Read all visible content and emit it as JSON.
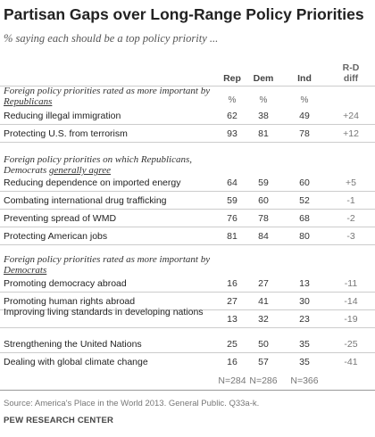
{
  "title": "Partisan Gaps over Long-Range Policy Priorities",
  "subtitle": "% saying each should be a top policy priority ...",
  "columns": {
    "rep": "Rep",
    "dem": "Dem",
    "ind": "Ind",
    "diff_line1": "R-D",
    "diff_line2": "diff"
  },
  "pct_sign": "%",
  "sections": [
    {
      "pre": "Foreign policy priorities rated as more important by ",
      "underlined": "Republicans",
      "post": ""
    },
    {
      "pre": "Foreign policy priorities on which Republicans, Democrats ",
      "underlined": "generally agree",
      "post": ""
    },
    {
      "pre": "Foreign policy priorities rated as more important by ",
      "underlined": "Democrats",
      "post": ""
    }
  ],
  "chart_data": {
    "type": "table",
    "title": "Partisan Gaps over Long-Range Policy Priorities",
    "subtitle": "% saying each should be a top policy priority ...",
    "columns": [
      "Rep",
      "Dem",
      "Ind",
      "R-D diff"
    ],
    "rows": [
      {
        "label": "Reducing illegal immigration",
        "rep": "62",
        "dem": "38",
        "ind": "49",
        "diff": "+24"
      },
      {
        "label": "Protecting U.S. from terrorism",
        "rep": "93",
        "dem": "81",
        "ind": "78",
        "diff": "+12"
      },
      {
        "label": "Reducing dependence on imported energy",
        "rep": "64",
        "dem": "59",
        "ind": "60",
        "diff": "+5"
      },
      {
        "label": "Combating international drug trafficking",
        "rep": "59",
        "dem": "60",
        "ind": "52",
        "diff": "-1"
      },
      {
        "label": "Preventing spread of WMD",
        "rep": "76",
        "dem": "78",
        "ind": "68",
        "diff": "-2"
      },
      {
        "label": "Protecting American jobs",
        "rep": "81",
        "dem": "84",
        "ind": "80",
        "diff": "-3"
      },
      {
        "label": "Promoting democracy abroad",
        "rep": "16",
        "dem": "27",
        "ind": "13",
        "diff": "-11"
      },
      {
        "label": "Promoting human rights abroad",
        "rep": "27",
        "dem": "41",
        "ind": "30",
        "diff": "-14"
      },
      {
        "label": "Improving living standards in developing nations",
        "rep": "13",
        "dem": "32",
        "ind": "23",
        "diff": "-19"
      },
      {
        "label": "Strengthening the United Nations",
        "rep": "25",
        "dem": "50",
        "ind": "35",
        "diff": "-25"
      },
      {
        "label": "Dealing with global climate change",
        "rep": "16",
        "dem": "57",
        "ind": "35",
        "diff": "-41"
      }
    ],
    "sample_sizes": {
      "rep": "N=284",
      "dem": "N=286",
      "ind": "N=366"
    }
  },
  "source": "Source: America's Place in the World 2013. General Public. Q33a-k.",
  "brand": "PEW RESEARCH CENTER"
}
